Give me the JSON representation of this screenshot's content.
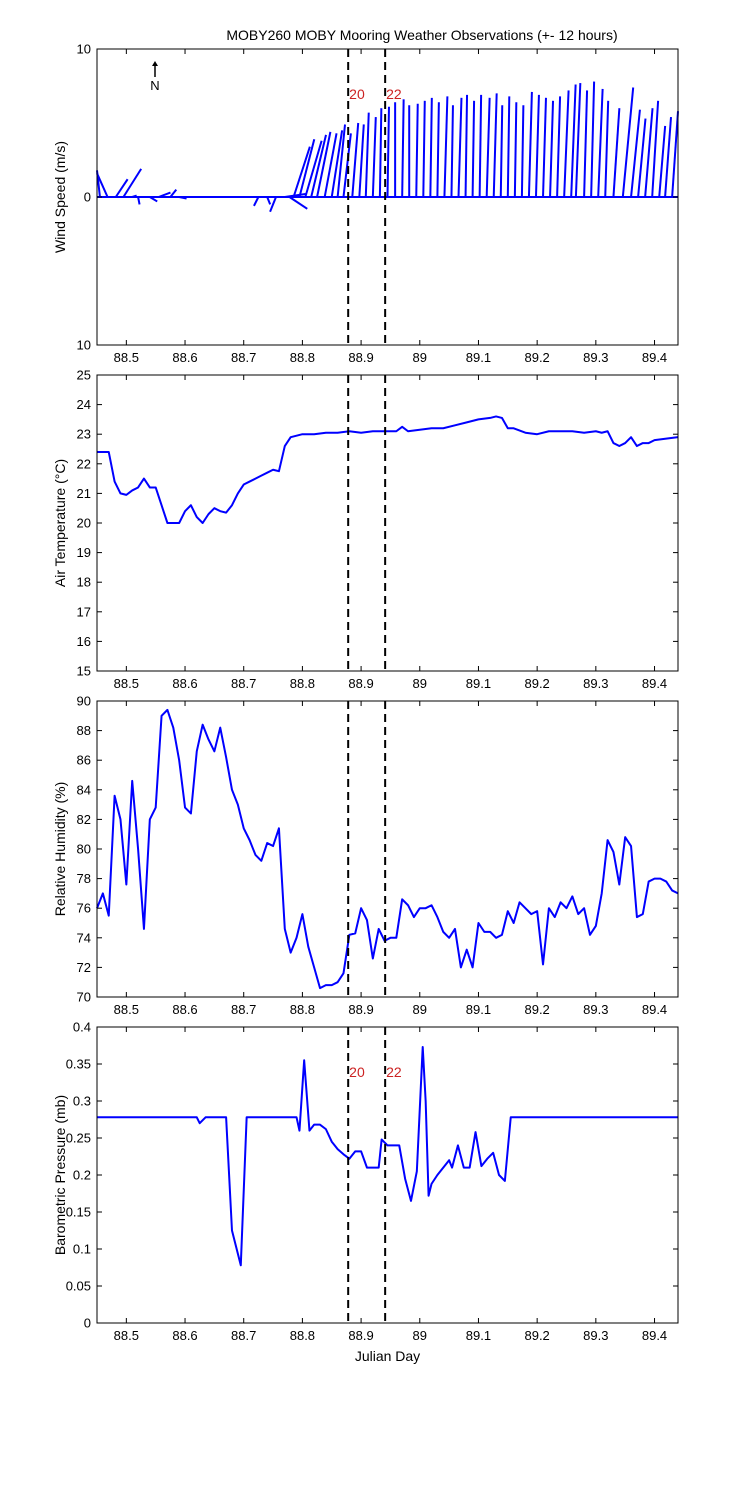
{
  "figure": {
    "title": "MOBY260 MOBY Mooring Weather Observations (+- 12 hours)"
  },
  "colors": {
    "series": "#0000ff",
    "marker_label": "#cc2222",
    "axis": "#000000"
  },
  "chart_data": [
    {
      "id": "wind",
      "type": "quiver",
      "title": "MOBY260 MOBY Mooring Weather Observations (+- 12 hours)",
      "xlabel": "",
      "ylabel": "Wind Speed (m/s)",
      "xlim": [
        88.45,
        89.44
      ],
      "ylim": [
        -10,
        10
      ],
      "ytick_values": [
        -10,
        0,
        10
      ],
      "ytick_labels": [
        "10",
        "0",
        "10"
      ],
      "xtick_labels": [
        "88.5",
        "88.6",
        "88.7",
        "88.8",
        "88.9",
        "89",
        "89.1",
        "89.2",
        "89.3",
        "89.4"
      ],
      "xtick_values": [
        88.5,
        88.6,
        88.7,
        88.8,
        88.9,
        89.0,
        89.1,
        89.2,
        89.3,
        89.4
      ],
      "north_label": "N",
      "markers": [
        {
          "x": 88.878,
          "label": "20"
        },
        {
          "x": 88.941,
          "label": "22"
        }
      ],
      "vectors": [
        [
          88.455,
          -1.0,
          1.8
        ],
        [
          88.468,
          -1.5,
          1.6
        ],
        [
          88.482,
          0.8,
          1.2
        ],
        [
          88.495,
          1.2,
          1.9
        ],
        [
          88.51,
          0.3,
          0.1
        ],
        [
          88.52,
          0.1,
          -0.5
        ],
        [
          88.54,
          0.5,
          -0.3
        ],
        [
          88.555,
          0.8,
          0.3
        ],
        [
          88.575,
          0.4,
          0.5
        ],
        [
          88.59,
          0.5,
          -0.1
        ],
        [
          88.61,
          0.6,
          0.0
        ],
        [
          88.63,
          0.4,
          0.0
        ],
        [
          88.65,
          0.3,
          0.0
        ],
        [
          88.67,
          0.2,
          0.0
        ],
        [
          88.69,
          0.3,
          0.0
        ],
        [
          88.71,
          0.4,
          0.0
        ],
        [
          88.725,
          -0.3,
          -0.6
        ],
        [
          88.74,
          0.2,
          -0.5
        ],
        [
          88.755,
          -0.4,
          -1.0
        ],
        [
          88.77,
          1.4,
          0.2
        ],
        [
          88.778,
          1.2,
          -0.8
        ],
        [
          88.785,
          1.1,
          3.4
        ],
        [
          88.795,
          1.0,
          3.9
        ],
        [
          88.805,
          1.1,
          3.8
        ],
        [
          88.815,
          1.0,
          4.2
        ],
        [
          88.825,
          0.9,
          4.4
        ],
        [
          88.838,
          0.8,
          4.3
        ],
        [
          88.85,
          0.7,
          4.5
        ],
        [
          88.86,
          0.5,
          4.9
        ],
        [
          88.87,
          0.5,
          4.3
        ],
        [
          88.885,
          0.4,
          5.0
        ],
        [
          88.897,
          0.3,
          4.9
        ],
        [
          88.908,
          0.2,
          5.7
        ],
        [
          88.92,
          0.2,
          5.4
        ],
        [
          88.932,
          0.1,
          6.0
        ],
        [
          88.945,
          0.1,
          6.1
        ],
        [
          88.958,
          0.0,
          6.4
        ],
        [
          88.97,
          0.1,
          6.6
        ],
        [
          88.982,
          0.0,
          6.2
        ],
        [
          88.994,
          0.1,
          6.3
        ],
        [
          89.006,
          0.1,
          6.5
        ],
        [
          89.018,
          0.1,
          6.7
        ],
        [
          89.03,
          0.1,
          6.4
        ],
        [
          89.042,
          0.2,
          6.8
        ],
        [
          89.054,
          0.1,
          6.2
        ],
        [
          89.066,
          0.2,
          6.7
        ],
        [
          89.078,
          0.1,
          6.9
        ],
        [
          89.09,
          0.1,
          6.5
        ],
        [
          89.102,
          0.1,
          6.9
        ],
        [
          89.114,
          0.2,
          6.7
        ],
        [
          89.126,
          0.2,
          7.0
        ],
        [
          89.138,
          0.1,
          6.2
        ],
        [
          89.15,
          0.1,
          6.8
        ],
        [
          89.162,
          0.1,
          6.4
        ],
        [
          89.174,
          0.1,
          6.2
        ],
        [
          89.186,
          0.2,
          7.1
        ],
        [
          89.198,
          0.2,
          6.9
        ],
        [
          89.21,
          0.2,
          6.7
        ],
        [
          89.222,
          0.2,
          6.5
        ],
        [
          89.234,
          0.2,
          6.8
        ],
        [
          89.246,
          0.3,
          7.2
        ],
        [
          89.258,
          0.3,
          7.6
        ],
        [
          89.266,
          0.3,
          7.7
        ],
        [
          89.28,
          0.2,
          7.2
        ],
        [
          89.292,
          0.2,
          7.8
        ],
        [
          89.304,
          0.3,
          7.3
        ],
        [
          89.316,
          0.2,
          6.5
        ],
        [
          89.33,
          0.4,
          6.0
        ],
        [
          89.346,
          0.7,
          7.4
        ],
        [
          89.36,
          0.6,
          5.9
        ],
        [
          89.372,
          0.5,
          5.3
        ],
        [
          89.384,
          0.5,
          6.0
        ],
        [
          89.396,
          0.4,
          6.5
        ],
        [
          89.408,
          0.4,
          4.8
        ],
        [
          89.418,
          0.4,
          5.4
        ],
        [
          89.43,
          0.4,
          5.8
        ]
      ]
    },
    {
      "id": "air_temperature",
      "type": "line",
      "xlabel": "",
      "ylabel": "Air Temperature (°C)",
      "xlim": [
        88.45,
        89.44
      ],
      "ylim": [
        15,
        25
      ],
      "ytick_values": [
        15,
        16,
        17,
        18,
        19,
        20,
        21,
        22,
        23,
        24,
        25
      ],
      "ytick_labels": [
        "15",
        "16",
        "17",
        "18",
        "19",
        "20",
        "21",
        "22",
        "23",
        "24",
        "25"
      ],
      "xtick_labels": [
        "88.5",
        "88.6",
        "88.7",
        "88.8",
        "88.9",
        "89",
        "89.1",
        "89.2",
        "89.3",
        "89.4"
      ],
      "xtick_values": [
        88.5,
        88.6,
        88.7,
        88.8,
        88.9,
        89.0,
        89.1,
        89.2,
        89.3,
        89.4
      ],
      "markers": [
        {
          "x": 88.878,
          "label": ""
        },
        {
          "x": 88.941,
          "label": ""
        }
      ],
      "x": [
        88.45,
        88.47,
        88.48,
        88.49,
        88.5,
        88.51,
        88.52,
        88.53,
        88.54,
        88.55,
        88.56,
        88.57,
        88.58,
        88.59,
        88.6,
        88.61,
        88.62,
        88.63,
        88.64,
        88.65,
        88.66,
        88.67,
        88.68,
        88.69,
        88.7,
        88.71,
        88.72,
        88.73,
        88.74,
        88.75,
        88.76,
        88.77,
        88.78,
        88.79,
        88.8,
        88.82,
        88.84,
        88.86,
        88.88,
        88.9,
        88.92,
        88.94,
        88.96,
        88.97,
        88.98,
        89.0,
        89.02,
        89.04,
        89.06,
        89.08,
        89.1,
        89.12,
        89.13,
        89.14,
        89.15,
        89.16,
        89.18,
        89.2,
        89.22,
        89.24,
        89.26,
        89.28,
        89.3,
        89.31,
        89.32,
        89.33,
        89.34,
        89.35,
        89.36,
        89.37,
        89.38,
        89.39,
        89.4,
        89.42,
        89.44
      ],
      "y": [
        22.4,
        22.4,
        21.4,
        21.0,
        20.95,
        21.1,
        21.2,
        21.5,
        21.2,
        21.2,
        20.6,
        20.0,
        20.0,
        20.0,
        20.4,
        20.6,
        20.2,
        20.0,
        20.3,
        20.5,
        20.4,
        20.35,
        20.6,
        21.0,
        21.3,
        21.4,
        21.5,
        21.6,
        21.7,
        21.8,
        21.75,
        22.6,
        22.9,
        22.95,
        23.0,
        23.0,
        23.05,
        23.05,
        23.1,
        23.05,
        23.1,
        23.1,
        23.1,
        23.25,
        23.1,
        23.15,
        23.2,
        23.2,
        23.3,
        23.4,
        23.5,
        23.55,
        23.6,
        23.55,
        23.2,
        23.2,
        23.05,
        23.0,
        23.1,
        23.1,
        23.1,
        23.05,
        23.1,
        23.05,
        23.1,
        22.7,
        22.6,
        22.7,
        22.9,
        22.6,
        22.7,
        22.7,
        22.8,
        22.85,
        22.9
      ]
    },
    {
      "id": "relative_humidity",
      "type": "line",
      "xlabel": "",
      "ylabel": "Relative Humidity (%)",
      "xlim": [
        88.45,
        89.44
      ],
      "ylim": [
        70,
        90
      ],
      "ytick_values": [
        70,
        72,
        74,
        76,
        78,
        80,
        82,
        84,
        86,
        88,
        90
      ],
      "ytick_labels": [
        "70",
        "72",
        "74",
        "76",
        "78",
        "80",
        "82",
        "84",
        "86",
        "88",
        "90"
      ],
      "xtick_labels": [
        "88.5",
        "88.6",
        "88.7",
        "88.8",
        "88.9",
        "89",
        "89.1",
        "89.2",
        "89.3",
        "89.4"
      ],
      "xtick_values": [
        88.5,
        88.6,
        88.7,
        88.8,
        88.9,
        89.0,
        89.1,
        89.2,
        89.3,
        89.4
      ],
      "markers": [
        {
          "x": 88.878,
          "label": ""
        },
        {
          "x": 88.941,
          "label": ""
        }
      ],
      "x": [
        88.45,
        88.46,
        88.47,
        88.48,
        88.49,
        88.5,
        88.51,
        88.52,
        88.53,
        88.54,
        88.55,
        88.56,
        88.57,
        88.58,
        88.59,
        88.6,
        88.61,
        88.62,
        88.63,
        88.64,
        88.65,
        88.66,
        88.67,
        88.68,
        88.69,
        88.7,
        88.71,
        88.72,
        88.73,
        88.74,
        88.75,
        88.76,
        88.77,
        88.78,
        88.79,
        88.8,
        88.81,
        88.82,
        88.83,
        88.84,
        88.85,
        88.86,
        88.87,
        88.88,
        88.89,
        88.9,
        88.91,
        88.92,
        88.93,
        88.94,
        88.95,
        88.96,
        88.97,
        88.98,
        88.99,
        89.0,
        89.01,
        89.02,
        89.03,
        89.04,
        89.05,
        89.06,
        89.07,
        89.08,
        89.09,
        89.1,
        89.11,
        89.12,
        89.13,
        89.14,
        89.15,
        89.16,
        89.17,
        89.18,
        89.19,
        89.2,
        89.21,
        89.22,
        89.23,
        89.24,
        89.25,
        89.26,
        89.27,
        89.28,
        89.29,
        89.3,
        89.31,
        89.32,
        89.33,
        89.34,
        89.35,
        89.36,
        89.37,
        89.38,
        89.39,
        89.4,
        89.41,
        89.42,
        89.43,
        89.44
      ],
      "y": [
        76.0,
        77.0,
        75.5,
        83.6,
        82.0,
        77.6,
        84.6,
        80.0,
        74.6,
        82.0,
        82.8,
        89.0,
        89.4,
        88.2,
        86.0,
        82.8,
        82.4,
        86.6,
        88.4,
        87.4,
        86.6,
        88.2,
        86.2,
        84.0,
        83.0,
        81.4,
        80.6,
        79.6,
        79.2,
        80.4,
        80.2,
        81.4,
        74.6,
        73.0,
        74.0,
        75.6,
        73.4,
        72.0,
        70.6,
        70.8,
        70.8,
        71.0,
        71.6,
        74.2,
        74.3,
        76.0,
        75.2,
        72.6,
        74.6,
        73.8,
        74.0,
        74.0,
        76.6,
        76.2,
        75.4,
        76.0,
        76.0,
        76.2,
        75.4,
        74.4,
        74.0,
        74.6,
        72.0,
        73.2,
        72.0,
        75.0,
        74.4,
        74.4,
        74.0,
        74.2,
        75.8,
        75.0,
        76.4,
        76.0,
        75.6,
        75.8,
        72.2,
        76.0,
        75.4,
        76.4,
        76.0,
        76.8,
        75.6,
        76.0,
        74.2,
        74.8,
        77.0,
        80.6,
        79.8,
        77.6,
        80.8,
        80.2,
        75.4,
        75.6,
        77.8,
        78.0,
        78.0,
        77.8,
        77.2,
        77.0
      ]
    },
    {
      "id": "barometric_pressure",
      "type": "line",
      "xlabel": "Julian Day",
      "ylabel": "Barometric Pressure (mb)",
      "xlim": [
        88.45,
        89.44
      ],
      "ylim": [
        0,
        0.4
      ],
      "ytick_values": [
        0,
        0.05,
        0.1,
        0.15,
        0.2,
        0.25,
        0.3,
        0.35,
        0.4
      ],
      "ytick_labels": [
        "0",
        "0.05",
        "0.1",
        "0.15",
        "0.2",
        "0.25",
        "0.3",
        "0.35",
        "0.4"
      ],
      "xtick_labels": [
        "88.5",
        "88.6",
        "88.7",
        "88.8",
        "88.9",
        "89",
        "89.1",
        "89.2",
        "89.3",
        "89.4"
      ],
      "xtick_values": [
        88.5,
        88.6,
        88.7,
        88.8,
        88.9,
        89.0,
        89.1,
        89.2,
        89.3,
        89.4
      ],
      "markers": [
        {
          "x": 88.878,
          "label": "20"
        },
        {
          "x": 88.941,
          "label": "22"
        }
      ],
      "x": [
        88.45,
        88.62,
        88.625,
        88.635,
        88.645,
        88.67,
        88.68,
        88.695,
        88.705,
        88.72,
        88.79,
        88.795,
        88.803,
        88.812,
        88.82,
        88.83,
        88.84,
        88.85,
        88.86,
        88.87,
        88.88,
        88.89,
        88.9,
        88.91,
        88.92,
        88.93,
        88.935,
        88.945,
        88.955,
        88.965,
        88.975,
        88.985,
        88.995,
        89.005,
        89.01,
        89.015,
        89.02,
        89.03,
        89.05,
        89.055,
        89.065,
        89.075,
        89.085,
        89.095,
        89.105,
        89.115,
        89.125,
        89.135,
        89.145,
        89.155,
        89.165,
        89.17,
        89.18,
        89.44
      ],
      "y": [
        0.278,
        0.278,
        0.27,
        0.278,
        0.278,
        0.278,
        0.125,
        0.078,
        0.278,
        0.278,
        0.278,
        0.26,
        0.355,
        0.26,
        0.268,
        0.268,
        0.262,
        0.245,
        0.235,
        0.228,
        0.222,
        0.232,
        0.232,
        0.21,
        0.21,
        0.21,
        0.248,
        0.24,
        0.24,
        0.24,
        0.195,
        0.165,
        0.205,
        0.373,
        0.3,
        0.172,
        0.188,
        0.2,
        0.22,
        0.21,
        0.24,
        0.21,
        0.21,
        0.258,
        0.212,
        0.222,
        0.23,
        0.2,
        0.192,
        0.278,
        0.278,
        0.278,
        0.278,
        0.278
      ]
    }
  ]
}
